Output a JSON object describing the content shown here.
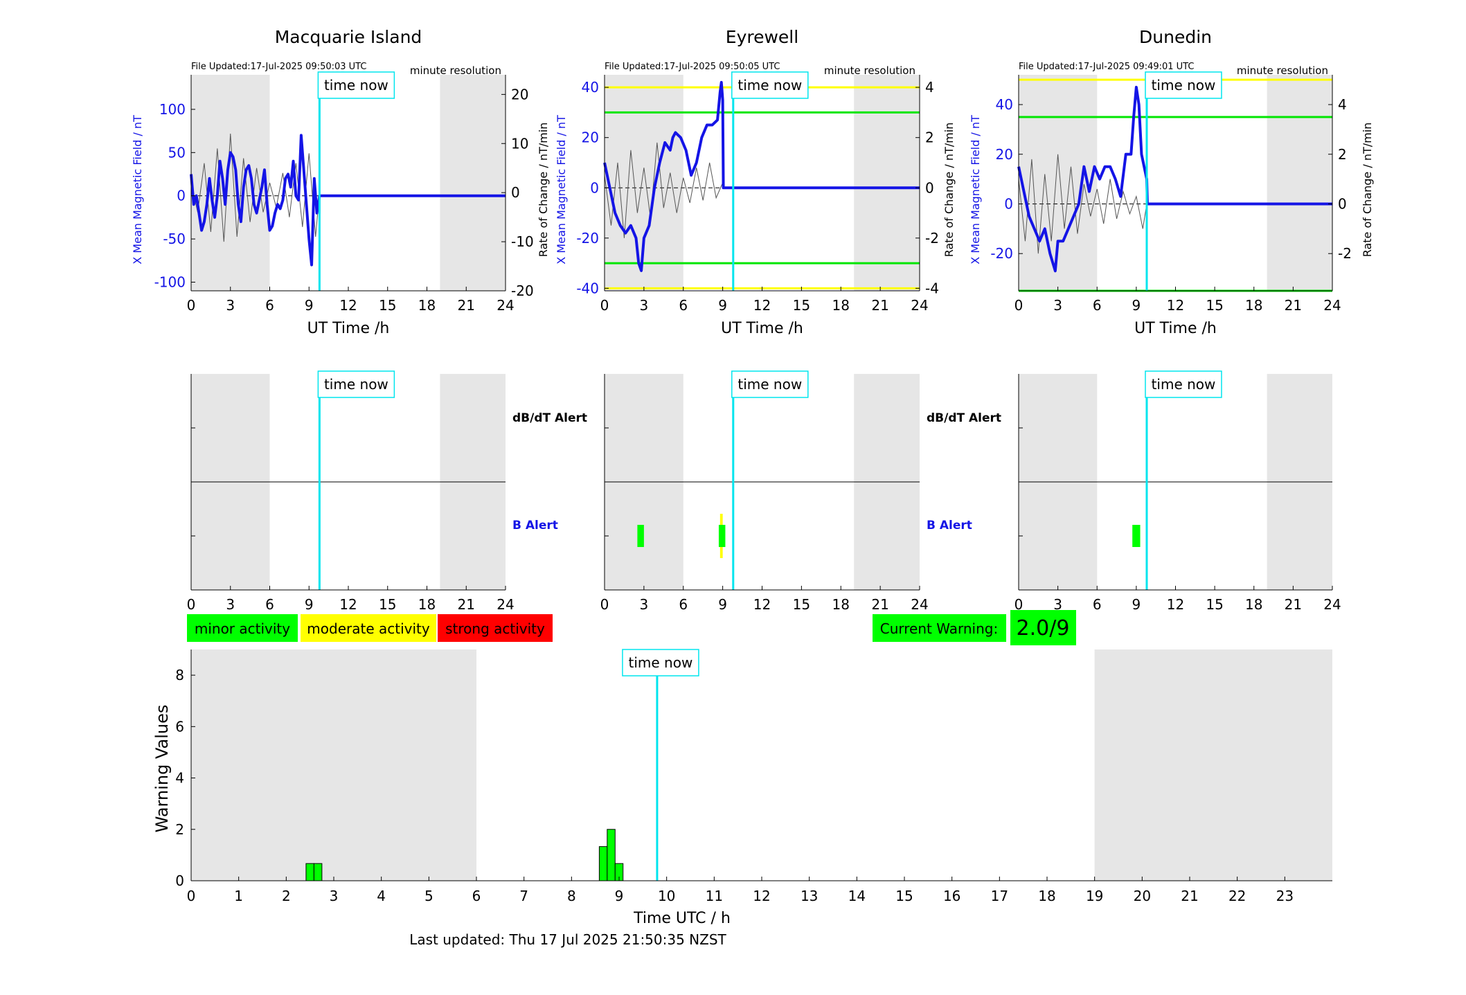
{
  "footer": {
    "last_updated": "Last updated: Thu 17 Jul 2025 21:50:35 NZST"
  },
  "colors": {
    "field": "#1414e6",
    "rate": "#555555",
    "now_line": "#00e5ee",
    "night_shade": "#e6e6e6",
    "minor": "#00ff00",
    "moderate": "#ffff00",
    "strong": "#ff0000",
    "threshold_green": "#00e600",
    "threshold_yellow": "#ffff00"
  },
  "common": {
    "time_now_label": "time now",
    "resolution_label": "minute resolution",
    "xlabel": "UT Time /h",
    "ylabel_left": "X Mean Magnetic Field / nT",
    "ylabel_right": "Rate of Change / nT/min",
    "dbdt_alert_label": "dB/dT Alert",
    "b_alert_label": "B Alert",
    "x_ticks": [
      "0",
      "3",
      "6",
      "9",
      "12",
      "15",
      "18",
      "21",
      "24"
    ]
  },
  "legend": {
    "minor": "minor activity",
    "moderate": "moderate activity",
    "strong": "strong activity"
  },
  "warning": {
    "label": "Current Warning:",
    "value": "2.0/9"
  },
  "chart_data": [
    {
      "type": "line",
      "title": "Macquarie Island",
      "file_updated": "File Updated:17-Jul-2025 09:50:03 UTC",
      "xlabel": "UT Time /h",
      "ylabel": "X Mean Magnetic Field / nT",
      "y2label": "",
      "xlim": [
        0,
        24
      ],
      "ylim": [
        -110,
        140
      ],
      "y2lim": [
        -20,
        24
      ],
      "y_ticks": [
        -100,
        -50,
        0,
        50,
        100
      ],
      "y2_ticks": [
        -20,
        -10,
        0,
        10,
        20
      ],
      "night_periods": [
        [
          0,
          6
        ],
        [
          19,
          24
        ]
      ],
      "time_now": 9.8,
      "thresholds": [],
      "field_series": {
        "x": [
          0,
          0.2,
          0.4,
          0.6,
          0.8,
          1.0,
          1.2,
          1.4,
          1.6,
          1.8,
          2.0,
          2.2,
          2.4,
          2.6,
          2.8,
          3.0,
          3.2,
          3.4,
          3.6,
          3.8,
          4.0,
          4.2,
          4.4,
          4.6,
          4.8,
          5.0,
          5.2,
          5.4,
          5.6,
          5.8,
          6.0,
          6.2,
          6.4,
          6.6,
          6.8,
          7.0,
          7.2,
          7.4,
          7.6,
          7.8,
          8.0,
          8.2,
          8.4,
          8.6,
          8.8,
          9.0,
          9.2,
          9.4,
          9.6,
          9.8,
          24
        ],
        "y": [
          25,
          -10,
          0,
          -20,
          -40,
          -30,
          -10,
          20,
          -5,
          -25,
          0,
          40,
          20,
          -10,
          30,
          50,
          45,
          30,
          -10,
          -30,
          10,
          30,
          35,
          20,
          -10,
          -20,
          -5,
          10,
          30,
          -10,
          -40,
          -35,
          -20,
          -10,
          -15,
          -5,
          20,
          25,
          10,
          40,
          0,
          -5,
          70,
          30,
          -10,
          -50,
          -80,
          20,
          -20,
          0,
          0
        ]
      },
      "rate_series": {
        "x": [
          0,
          0.5,
          1.0,
          1.5,
          2.0,
          2.5,
          3.0,
          3.5,
          4.0,
          4.5,
          5.0,
          5.5,
          6.0,
          6.5,
          7.0,
          7.5,
          8.0,
          8.5,
          9.0,
          9.5,
          9.8
        ],
        "y": [
          2,
          -4,
          6,
          -8,
          9,
          -10,
          12,
          -9,
          7,
          -6,
          5,
          -4,
          2,
          -3,
          4,
          -5,
          6,
          -7,
          8,
          -9,
          0
        ]
      },
      "alerts": {
        "dbdt": [],
        "b": []
      }
    },
    {
      "type": "line",
      "title": "Eyrewell",
      "file_updated": "File Updated:17-Jul-2025 09:50:05 UTC",
      "xlabel": "UT Time /h",
      "ylabel": "X Mean Magnetic Field / nT",
      "y2label": "Rate of Change / nT/min",
      "xlim": [
        0,
        24
      ],
      "ylim": [
        -41,
        45
      ],
      "y2lim": [
        -4.1,
        4.5
      ],
      "y_ticks": [
        -40,
        -20,
        0,
        20,
        40
      ],
      "y2_ticks": [
        -4,
        -2,
        0,
        2,
        4
      ],
      "night_periods": [
        [
          0,
          6
        ],
        [
          19,
          24
        ]
      ],
      "time_now": 9.8,
      "thresholds": [
        {
          "value": 40,
          "color": "yellow"
        },
        {
          "value": 30,
          "color": "green"
        },
        {
          "value": -30,
          "color": "green"
        },
        {
          "value": -40,
          "color": "yellow"
        }
      ],
      "field_series": {
        "x": [
          0,
          0.4,
          0.8,
          1.2,
          1.6,
          2.0,
          2.4,
          2.6,
          2.8,
          3.0,
          3.4,
          3.8,
          4.2,
          4.6,
          5.0,
          5.2,
          5.4,
          5.8,
          6.2,
          6.6,
          7.0,
          7.4,
          7.8,
          8.2,
          8.6,
          8.8,
          8.9,
          9.0,
          9.05,
          24
        ],
        "y": [
          10,
          0,
          -10,
          -15,
          -18,
          -15,
          -20,
          -30,
          -33,
          -20,
          -15,
          0,
          10,
          18,
          15,
          20,
          22,
          20,
          15,
          5,
          10,
          20,
          25,
          25,
          27,
          38,
          42,
          35,
          0,
          0
        ]
      },
      "rate_series": {
        "x": [
          0,
          0.5,
          1.0,
          1.5,
          2.0,
          2.5,
          3.0,
          3.5,
          4.0,
          4.5,
          5.0,
          5.5,
          6.0,
          6.5,
          7.0,
          7.5,
          8.0,
          8.5,
          9.0
        ],
        "y": [
          0.5,
          -1.5,
          1.0,
          -2.0,
          1.5,
          -1.0,
          0.8,
          -1.2,
          1.8,
          -0.8,
          0.6,
          -1.0,
          0.4,
          -0.6,
          0.8,
          -0.5,
          1.0,
          -0.4,
          0.2
        ]
      },
      "alerts": {
        "dbdt": [],
        "b": [
          {
            "start": 2.5,
            "end": 3.0,
            "level": "minor"
          },
          {
            "start": 8.8,
            "end": 9.0,
            "level": "moderate"
          },
          {
            "start": 8.7,
            "end": 9.2,
            "level": "minor"
          }
        ]
      }
    },
    {
      "type": "line",
      "title": "Dunedin",
      "file_updated": "File Updated:17-Jul-2025 09:49:01 UTC",
      "xlabel": "UT Time /h",
      "ylabel": "X Mean Magnetic Field / nT",
      "y2label": "Rate of Change / nT/min",
      "xlim": [
        0,
        24
      ],
      "ylim": [
        -35,
        52
      ],
      "y2lim": [
        -3.5,
        5.2
      ],
      "y_ticks": [
        -20,
        0,
        20,
        40
      ],
      "y2_ticks": [
        -2,
        0,
        2,
        4
      ],
      "night_periods": [
        [
          0,
          6
        ],
        [
          19,
          24
        ]
      ],
      "time_now": 9.8,
      "thresholds": [
        {
          "value": 50,
          "color": "yellow"
        },
        {
          "value": 35,
          "color": "green"
        },
        {
          "value": -35,
          "color": "green"
        }
      ],
      "field_series": {
        "x": [
          0,
          0.4,
          0.8,
          1.2,
          1.6,
          2.0,
          2.4,
          2.8,
          3.0,
          3.4,
          3.8,
          4.2,
          4.6,
          5.0,
          5.4,
          5.8,
          6.2,
          6.6,
          7.0,
          7.4,
          7.8,
          8.2,
          8.6,
          8.8,
          9.0,
          9.2,
          9.4,
          9.6,
          9.8,
          9.85,
          24
        ],
        "y": [
          15,
          5,
          -5,
          -10,
          -15,
          -10,
          -20,
          -27,
          -15,
          -15,
          -10,
          -5,
          0,
          15,
          5,
          15,
          10,
          15,
          15,
          10,
          3,
          20,
          20,
          35,
          47,
          40,
          20,
          15,
          10,
          0,
          0
        ]
      },
      "rate_series": {
        "x": [
          0,
          0.5,
          1.0,
          1.5,
          2.0,
          2.5,
          3.0,
          3.5,
          4.0,
          4.5,
          5.0,
          5.5,
          6.0,
          6.5,
          7.0,
          7.5,
          8.0,
          8.5,
          9.0,
          9.5,
          9.8
        ],
        "y": [
          1.0,
          -1.5,
          1.8,
          -2.0,
          1.2,
          -1.5,
          2.0,
          -1.0,
          1.5,
          -1.2,
          0.8,
          -0.5,
          0.6,
          -0.8,
          1.0,
          -0.6,
          0.5,
          -0.4,
          0.3,
          -1.0,
          0
        ]
      },
      "alerts": {
        "dbdt": [],
        "b": [
          {
            "start": 8.7,
            "end": 9.3,
            "level": "minor"
          }
        ]
      }
    },
    {
      "type": "bar",
      "title": "",
      "xlabel": "Time UTC / h",
      "ylabel": "Warning Values",
      "xlim": [
        0,
        24
      ],
      "ylim": [
        0,
        9
      ],
      "x_ticks": [
        0,
        1,
        2,
        3,
        4,
        5,
        6,
        7,
        8,
        9,
        10,
        11,
        12,
        13,
        14,
        15,
        16,
        17,
        18,
        19,
        20,
        21,
        22,
        23
      ],
      "y_ticks": [
        0,
        2,
        4,
        6,
        8
      ],
      "night_periods": [
        [
          0,
          6
        ],
        [
          19,
          24
        ]
      ],
      "time_now": 9.8,
      "bar_width": 0.167,
      "bars": [
        {
          "x": 2.5,
          "value": 0.67
        },
        {
          "x": 2.667,
          "value": 0.67
        },
        {
          "x": 8.667,
          "value": 1.33
        },
        {
          "x": 8.833,
          "value": 2.0
        },
        {
          "x": 9.0,
          "value": 0.67
        }
      ]
    }
  ]
}
